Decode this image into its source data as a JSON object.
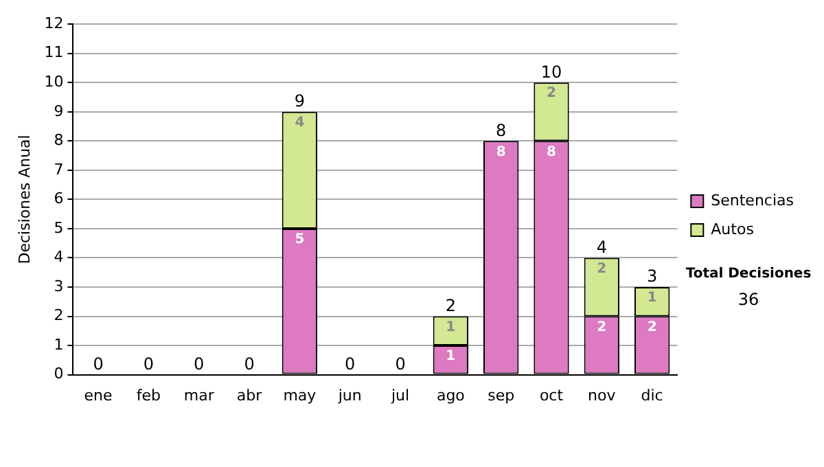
{
  "chart_data": {
    "type": "bar",
    "ylabel": "Decisiones Anual",
    "categories": [
      "ene",
      "feb",
      "mar",
      "abr",
      "may",
      "jun",
      "jul",
      "ago",
      "sep",
      "oct",
      "nov",
      "dic"
    ],
    "series": [
      {
        "name": "Sentencias",
        "color": "#dd7ac2",
        "values": [
          0,
          0,
          0,
          0,
          5,
          0,
          0,
          1,
          8,
          8,
          2,
          2
        ],
        "value_labels": [
          null,
          null,
          null,
          null,
          "5",
          null,
          null,
          "1",
          "8",
          "8",
          "2",
          "2"
        ]
      },
      {
        "name": "Autos",
        "color": "#d2e892",
        "values": [
          0,
          0,
          0,
          0,
          4,
          0,
          0,
          1,
          0,
          2,
          2,
          1
        ],
        "value_labels": [
          null,
          null,
          null,
          null,
          "4",
          null,
          null,
          "1",
          null,
          "2",
          "2",
          "1"
        ]
      }
    ],
    "stacked": true,
    "ylim": [
      0,
      12
    ],
    "yticks": [
      0,
      1,
      2,
      3,
      4,
      5,
      6,
      7,
      8,
      9,
      10,
      11,
      12
    ],
    "grid": "y",
    "legend": "right",
    "totals": [
      "0",
      "0",
      "0",
      "0",
      "9",
      "0",
      "0",
      "2",
      "8",
      "10",
      "4",
      "3"
    ],
    "annotations": [
      "Total Decisiones",
      "36"
    ]
  }
}
